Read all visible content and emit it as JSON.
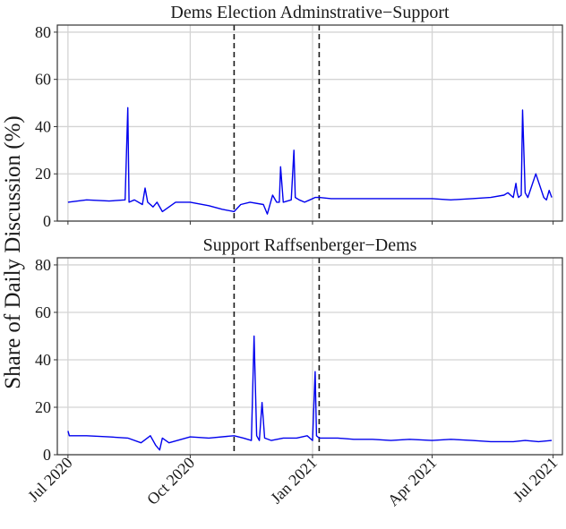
{
  "ylabel": "Share of Daily Discussion (%)",
  "colors": {
    "line": "#0000ee",
    "grid": "#d4d4d4",
    "frame": "#333333",
    "vline": "#1a1a1a"
  },
  "chart_data": [
    {
      "type": "line",
      "title": "Dems Election Adminstrative−Support",
      "ylabel": "Share of Daily Discussion (%)",
      "ylim": [
        0,
        83
      ],
      "yticks": [
        0,
        20,
        40,
        60,
        80
      ],
      "xlim": [
        "2020-06-23",
        "2021-07-08"
      ],
      "xticks": [
        "2020-07-01",
        "2020-10-01",
        "2021-01-01",
        "2021-04-01",
        "2021-07-01"
      ],
      "xtick_labels": [
        "Jul 2020",
        "Oct 2020",
        "Jan 2021",
        "Apr 2021",
        "Jul 2021"
      ],
      "vlines": [
        "2020-11-03",
        "2021-01-06"
      ],
      "grid": true,
      "series": [
        {
          "color": "#0000ee",
          "x": [
            "2020-07-01",
            "2020-07-15",
            "2020-08-01",
            "2020-08-13",
            "2020-08-15",
            "2020-08-16",
            "2020-08-20",
            "2020-08-26",
            "2020-08-28",
            "2020-08-30",
            "2020-09-03",
            "2020-09-06",
            "2020-09-10",
            "2020-09-20",
            "2020-10-01",
            "2020-10-15",
            "2020-10-25",
            "2020-11-03",
            "2020-11-08",
            "2020-11-15",
            "2020-11-25",
            "2020-11-28",
            "2020-12-02",
            "2020-12-05",
            "2020-12-07",
            "2020-12-08",
            "2020-12-10",
            "2020-12-16",
            "2020-12-18",
            "2020-12-19",
            "2020-12-22",
            "2020-12-26",
            "2020-12-30",
            "2021-01-03",
            "2021-01-06",
            "2021-01-15",
            "2021-02-01",
            "2021-02-15",
            "2021-03-01",
            "2021-03-15",
            "2021-04-01",
            "2021-04-15",
            "2021-05-01",
            "2021-05-15",
            "2021-05-25",
            "2021-05-28",
            "2021-06-01",
            "2021-06-03",
            "2021-06-04",
            "2021-06-05",
            "2021-06-07",
            "2021-06-08",
            "2021-06-10",
            "2021-06-12",
            "2021-06-18",
            "2021-06-24",
            "2021-06-26",
            "2021-06-28",
            "2021-06-30"
          ],
          "values": [
            8,
            9,
            8.5,
            9,
            48,
            8,
            9,
            7,
            14,
            8,
            6,
            8,
            4,
            8,
            8,
            6.5,
            5,
            4,
            7,
            8,
            7,
            3,
            11,
            8,
            8,
            23,
            8,
            9,
            30,
            10,
            9,
            8,
            9,
            10,
            10,
            9.5,
            9.5,
            9.5,
            9.5,
            9.5,
            9.5,
            9,
            9.5,
            10,
            11,
            12,
            10,
            16,
            12,
            10,
            11,
            47,
            12,
            10,
            20,
            10,
            9,
            13,
            10
          ]
        }
      ]
    },
    {
      "type": "line",
      "title": "Support Raffsenberger−Dems",
      "ylabel": "Share of Daily Discussion (%)",
      "ylim": [
        0,
        83
      ],
      "yticks": [
        0,
        20,
        40,
        60,
        80
      ],
      "xlim": [
        "2020-06-23",
        "2021-07-08"
      ],
      "xticks": [
        "2020-07-01",
        "2020-10-01",
        "2021-01-01",
        "2021-04-01",
        "2021-07-01"
      ],
      "xtick_labels": [
        "Jul 2020",
        "Oct 2020",
        "Jan 2021",
        "Apr 2021",
        "Jul 2021"
      ],
      "vlines": [
        "2020-11-03",
        "2021-01-06"
      ],
      "grid": true,
      "series": [
        {
          "color": "#0000ee",
          "x": [
            "2020-07-01",
            "2020-07-02",
            "2020-07-15",
            "2020-08-01",
            "2020-08-15",
            "2020-08-25",
            "2020-09-01",
            "2020-09-05",
            "2020-09-08",
            "2020-09-10",
            "2020-09-15",
            "2020-10-01",
            "2020-10-15",
            "2020-11-03",
            "2020-11-10",
            "2020-11-16",
            "2020-11-18",
            "2020-11-20",
            "2020-11-22",
            "2020-11-24",
            "2020-11-26",
            "2020-12-01",
            "2020-12-10",
            "2020-12-20",
            "2020-12-28",
            "2021-01-01",
            "2021-01-03",
            "2021-01-04",
            "2021-01-06",
            "2021-01-10",
            "2021-01-20",
            "2021-02-01",
            "2021-02-15",
            "2021-03-01",
            "2021-03-15",
            "2021-04-01",
            "2021-04-15",
            "2021-05-01",
            "2021-05-15",
            "2021-06-01",
            "2021-06-10",
            "2021-06-20",
            "2021-06-30"
          ],
          "values": [
            10,
            8,
            8,
            7.5,
            7,
            5,
            8,
            4,
            2,
            7,
            5,
            7.5,
            7,
            8,
            7,
            6,
            50,
            8,
            6,
            22,
            7,
            6,
            7,
            7,
            8,
            6,
            35,
            8,
            7,
            7,
            7,
            6.5,
            6.5,
            6,
            6.5,
            6,
            6.5,
            6,
            5.5,
            5.5,
            6,
            5.5,
            6
          ]
        }
      ]
    }
  ]
}
